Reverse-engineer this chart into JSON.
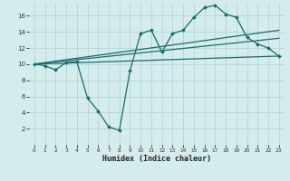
{
  "xlabel": "Humidex (Indice chaleur)",
  "background_color": "#d4ecec",
  "grid_color": "#b8d8d8",
  "line_color": "#1a6b6b",
  "xlim": [
    -0.5,
    23.5
  ],
  "ylim": [
    0,
    17.5
  ],
  "xticks": [
    0,
    1,
    2,
    3,
    4,
    5,
    6,
    7,
    8,
    9,
    10,
    11,
    12,
    13,
    14,
    15,
    16,
    17,
    18,
    19,
    20,
    21,
    22,
    23
  ],
  "yticks": [
    2,
    4,
    6,
    8,
    10,
    12,
    14,
    16
  ],
  "curve_x": [
    0,
    1,
    2,
    3,
    4,
    5,
    6,
    7,
    8,
    9,
    10,
    11,
    12,
    13,
    14,
    15,
    16,
    17,
    18,
    19,
    20,
    21,
    22,
    23
  ],
  "curve_y": [
    10.0,
    9.8,
    9.3,
    10.2,
    10.3,
    5.8,
    4.2,
    2.2,
    1.8,
    9.2,
    13.8,
    14.2,
    11.5,
    13.8,
    14.2,
    15.8,
    17.0,
    17.3,
    16.2,
    15.8,
    13.3,
    12.5,
    12.0,
    11.0
  ],
  "line1_x": [
    0,
    23
  ],
  "line1_y": [
    10.0,
    11.0
  ],
  "line2_x": [
    0,
    23
  ],
  "line2_y": [
    10.0,
    13.2
  ],
  "line3_x": [
    0,
    23
  ],
  "line3_y": [
    10.0,
    14.2
  ]
}
